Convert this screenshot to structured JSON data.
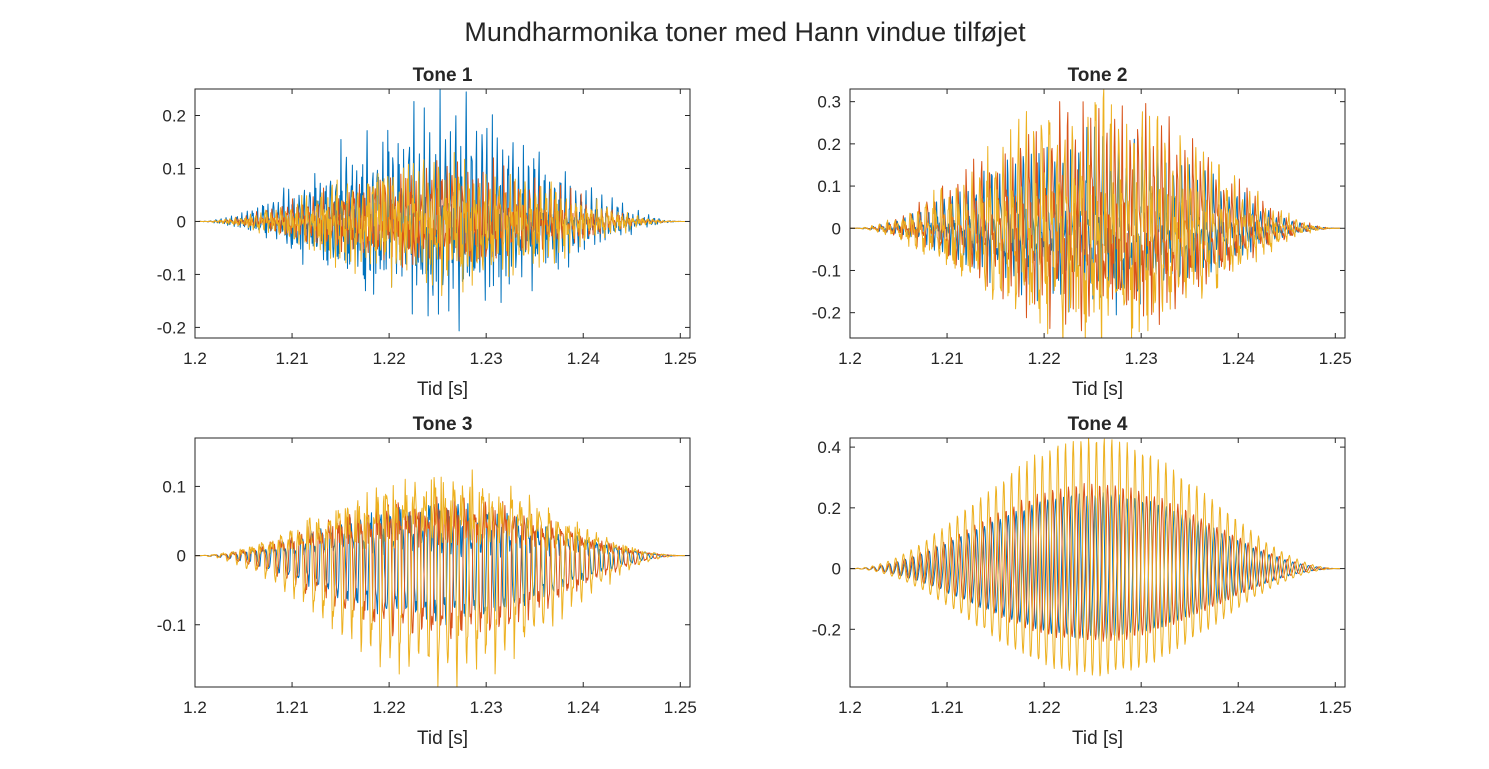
{
  "figure": {
    "title": "Mundharmonika toner med Hann vindue tilføjet"
  },
  "chart_data": [
    {
      "type": "line",
      "title": "Tone 1",
      "xlabel": "Tid [s]",
      "ylabel": "",
      "xlim": [
        1.2,
        1.251
      ],
      "ylim": [
        -0.22,
        0.25
      ],
      "xticks": [
        1.2,
        1.21,
        1.22,
        1.23,
        1.24,
        1.25
      ],
      "xtick_labels": [
        "1.2",
        "1.21",
        "1.22",
        "1.23",
        "1.24",
        "1.25"
      ],
      "yticks": [
        -0.2,
        -0.1,
        0,
        0.1,
        0.2
      ],
      "ytick_labels": [
        "-0.2",
        "-0.1",
        "0",
        "0.1",
        "0.2"
      ],
      "grid": false,
      "window": "hann",
      "series": [
        {
          "color": "#0072BD",
          "peak": 0.25,
          "mean_amp": 0.07
        },
        {
          "color": "#D95319",
          "peak": 0.12,
          "mean_amp": 0.06
        },
        {
          "color": "#EDB120",
          "peak": 0.14,
          "mean_amp": 0.06
        }
      ]
    },
    {
      "type": "line",
      "title": "Tone 2",
      "xlabel": "Tid [s]",
      "ylabel": "",
      "xlim": [
        1.2,
        1.251
      ],
      "ylim": [
        -0.26,
        0.33
      ],
      "xticks": [
        1.2,
        1.21,
        1.22,
        1.23,
        1.24,
        1.25
      ],
      "xtick_labels": [
        "1.2",
        "1.21",
        "1.22",
        "1.23",
        "1.24",
        "1.25"
      ],
      "yticks": [
        -0.2,
        -0.1,
        0,
        0.1,
        0.2,
        0.3
      ],
      "ytick_labels": [
        "-0.2",
        "-0.1",
        "0",
        "0.1",
        "0.2",
        "0.3"
      ],
      "grid": false,
      "window": "hann",
      "series": [
        {
          "color": "#0072BD",
          "peak": 0.24,
          "mean_amp": 0.12
        },
        {
          "color": "#D95319",
          "peak": 0.3,
          "mean_amp": 0.12
        },
        {
          "color": "#EDB120",
          "peak": 0.33,
          "mean_amp": 0.13
        }
      ]
    },
    {
      "type": "line",
      "title": "Tone 3",
      "xlabel": "Tid [s]",
      "ylabel": "",
      "xlim": [
        1.2,
        1.251
      ],
      "ylim": [
        -0.19,
        0.17
      ],
      "xticks": [
        1.2,
        1.21,
        1.22,
        1.23,
        1.24,
        1.25
      ],
      "xtick_labels": [
        "1.2",
        "1.21",
        "1.22",
        "1.23",
        "1.24",
        "1.25"
      ],
      "yticks": [
        -0.1,
        0,
        0.1
      ],
      "ytick_labels": [
        "-0.1",
        "0",
        "0.1"
      ],
      "grid": false,
      "window": "hann",
      "series": [
        {
          "color": "#0072BD",
          "peak": 0.1,
          "mean_amp": 0.06
        },
        {
          "color": "#D95319",
          "peak": 0.12,
          "mean_amp": 0.07
        },
        {
          "color": "#EDB120",
          "peak": 0.19,
          "mean_amp": 0.1
        }
      ]
    },
    {
      "type": "line",
      "title": "Tone 4",
      "xlabel": "Tid [s]",
      "ylabel": "",
      "xlim": [
        1.2,
        1.251
      ],
      "ylim": [
        -0.39,
        0.43
      ],
      "xticks": [
        1.2,
        1.21,
        1.22,
        1.23,
        1.24,
        1.25
      ],
      "xtick_labels": [
        "1.2",
        "1.21",
        "1.22",
        "1.23",
        "1.24",
        "1.25"
      ],
      "yticks": [
        -0.2,
        0,
        0.2,
        0.4
      ],
      "ytick_labels": [
        "-0.2",
        "0",
        "0.2",
        "0.4"
      ],
      "grid": false,
      "window": "hann",
      "series": [
        {
          "color": "#0072BD",
          "peak": 0.25,
          "mean_amp": 0.2
        },
        {
          "color": "#D95319",
          "peak": 0.28,
          "mean_amp": 0.22
        },
        {
          "color": "#EDB120",
          "peak": 0.43,
          "mean_amp": 0.36
        }
      ]
    }
  ]
}
